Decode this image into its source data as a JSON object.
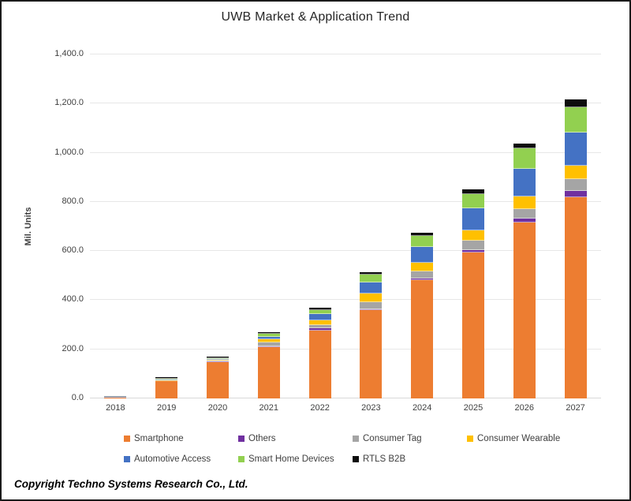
{
  "title": "UWB Market & Application Trend",
  "y_axis_title": "Mil. Units",
  "copyright": "Copyright Techno Systems Research Co., Ltd.",
  "chart_data": {
    "type": "bar",
    "stacked": true,
    "title": "UWB Market & Application Trend",
    "ylabel": "Mil. Units",
    "ylim": [
      0,
      1400
    ],
    "ytick_step": 200,
    "ytick_labels": [
      "0.0",
      "200.0",
      "400.0",
      "600.0",
      "800.0",
      "1,000.0",
      "1,200.0",
      "1,400.0"
    ],
    "grid": true,
    "legend_position": "bottom",
    "categories": [
      "2018",
      "2019",
      "2020",
      "2021",
      "2022",
      "2023",
      "2024",
      "2025",
      "2026",
      "2027"
    ],
    "series": [
      {
        "name": "Smartphone",
        "color": "#ED7D31",
        "values": [
          2,
          72,
          147,
          210,
          277,
          360,
          481,
          593,
          716,
          818
        ]
      },
      {
        "name": "Others",
        "color": "#7030A0",
        "values": [
          0,
          0,
          0.5,
          3,
          8,
          4,
          8,
          11,
          16,
          27
        ]
      },
      {
        "name": "Consumer Tag",
        "color": "#A5A5A5",
        "values": [
          0,
          0,
          0.5,
          15,
          14,
          28,
          27,
          38,
          40,
          48
        ]
      },
      {
        "name": "Consumer Wearable",
        "color": "#FFC000",
        "values": [
          0,
          0.5,
          1,
          12,
          18,
          34,
          35,
          41,
          49,
          53
        ]
      },
      {
        "name": "Automotive Access",
        "color": "#4472C4",
        "values": [
          0.5,
          1,
          5,
          10,
          27,
          46,
          66,
          90,
          114,
          136
        ]
      },
      {
        "name": "Smart Home Devices",
        "color": "#92D050",
        "values": [
          0,
          0.5,
          1,
          13,
          17,
          31,
          46,
          60,
          83,
          103
        ]
      },
      {
        "name": "RTLS B2B",
        "color": "#0D0D0D",
        "values": [
          1,
          4,
          5,
          6,
          7,
          12,
          13,
          18,
          19,
          32
        ]
      }
    ],
    "totals": [
      3.5,
      78,
      160,
      269,
      368,
      515,
      676,
      851,
      1037,
      1217
    ]
  }
}
